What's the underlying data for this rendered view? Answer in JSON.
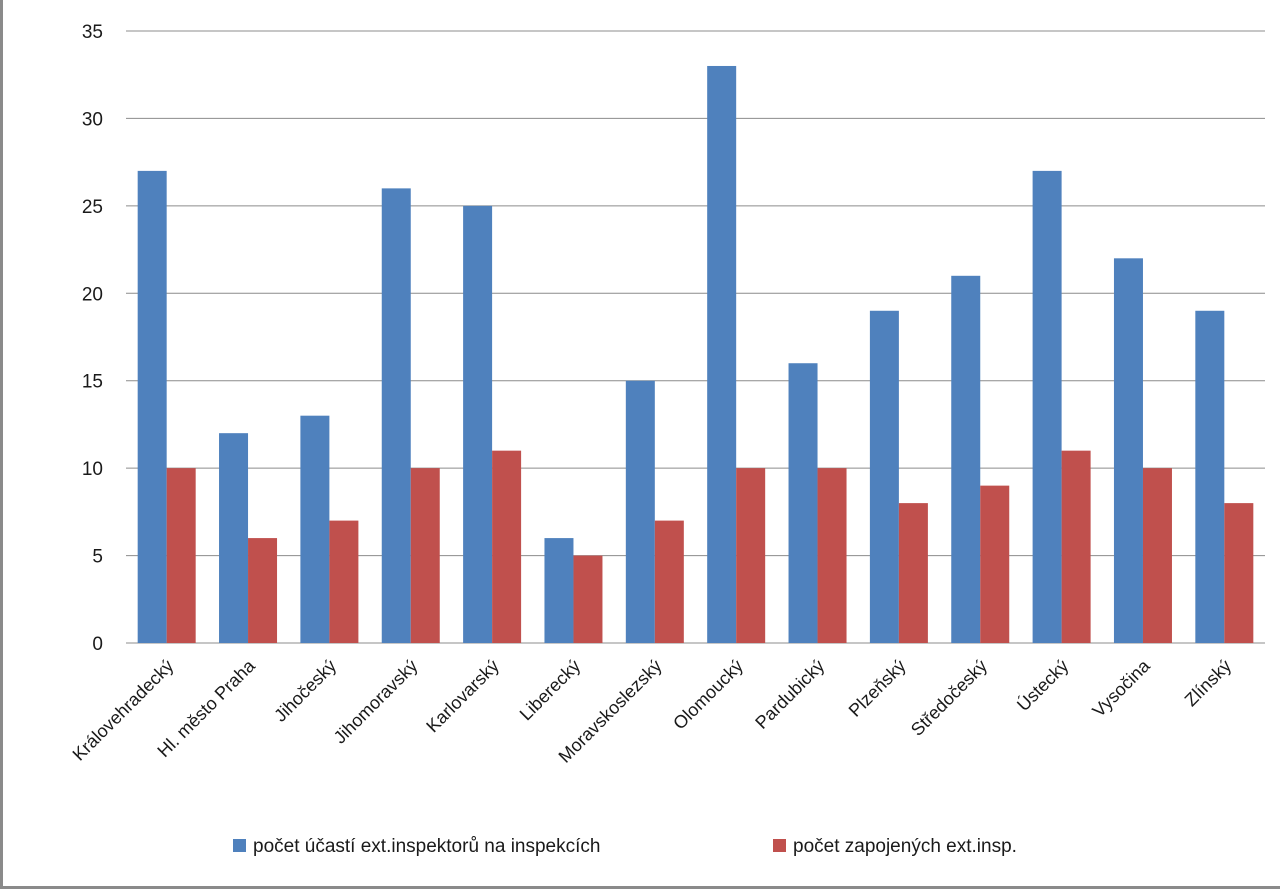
{
  "chart_data": {
    "type": "bar",
    "categories": [
      "Královehradecký",
      "Hl. město Praha",
      "Jihočeský",
      "Jihomoravský",
      "Karlovarský",
      "Liberecký",
      "Moravskoslezský",
      "Olomoucký",
      "Pardubický",
      "Plzeňský",
      "Středočeský",
      "Ústecký",
      "Vysočina",
      "Zlínský"
    ],
    "series": [
      {
        "name": "počet účastí ext.inspektorů na inspekcích",
        "color": "#4f81bd",
        "values": [
          27,
          12,
          13,
          26,
          25,
          6,
          15,
          33,
          16,
          19,
          21,
          27,
          22,
          19
        ]
      },
      {
        "name": "počet zapojených ext.insp.",
        "color": "#c0504d",
        "values": [
          10,
          6,
          7,
          10,
          11,
          5,
          7,
          10,
          10,
          8,
          9,
          11,
          10,
          8
        ]
      }
    ],
    "ylim": [
      0,
      35
    ],
    "yticks": [
      "0",
      "5",
      "10",
      "15",
      "20",
      "25",
      "30",
      "35"
    ],
    "grid": true,
    "legend_position": "bottom"
  }
}
